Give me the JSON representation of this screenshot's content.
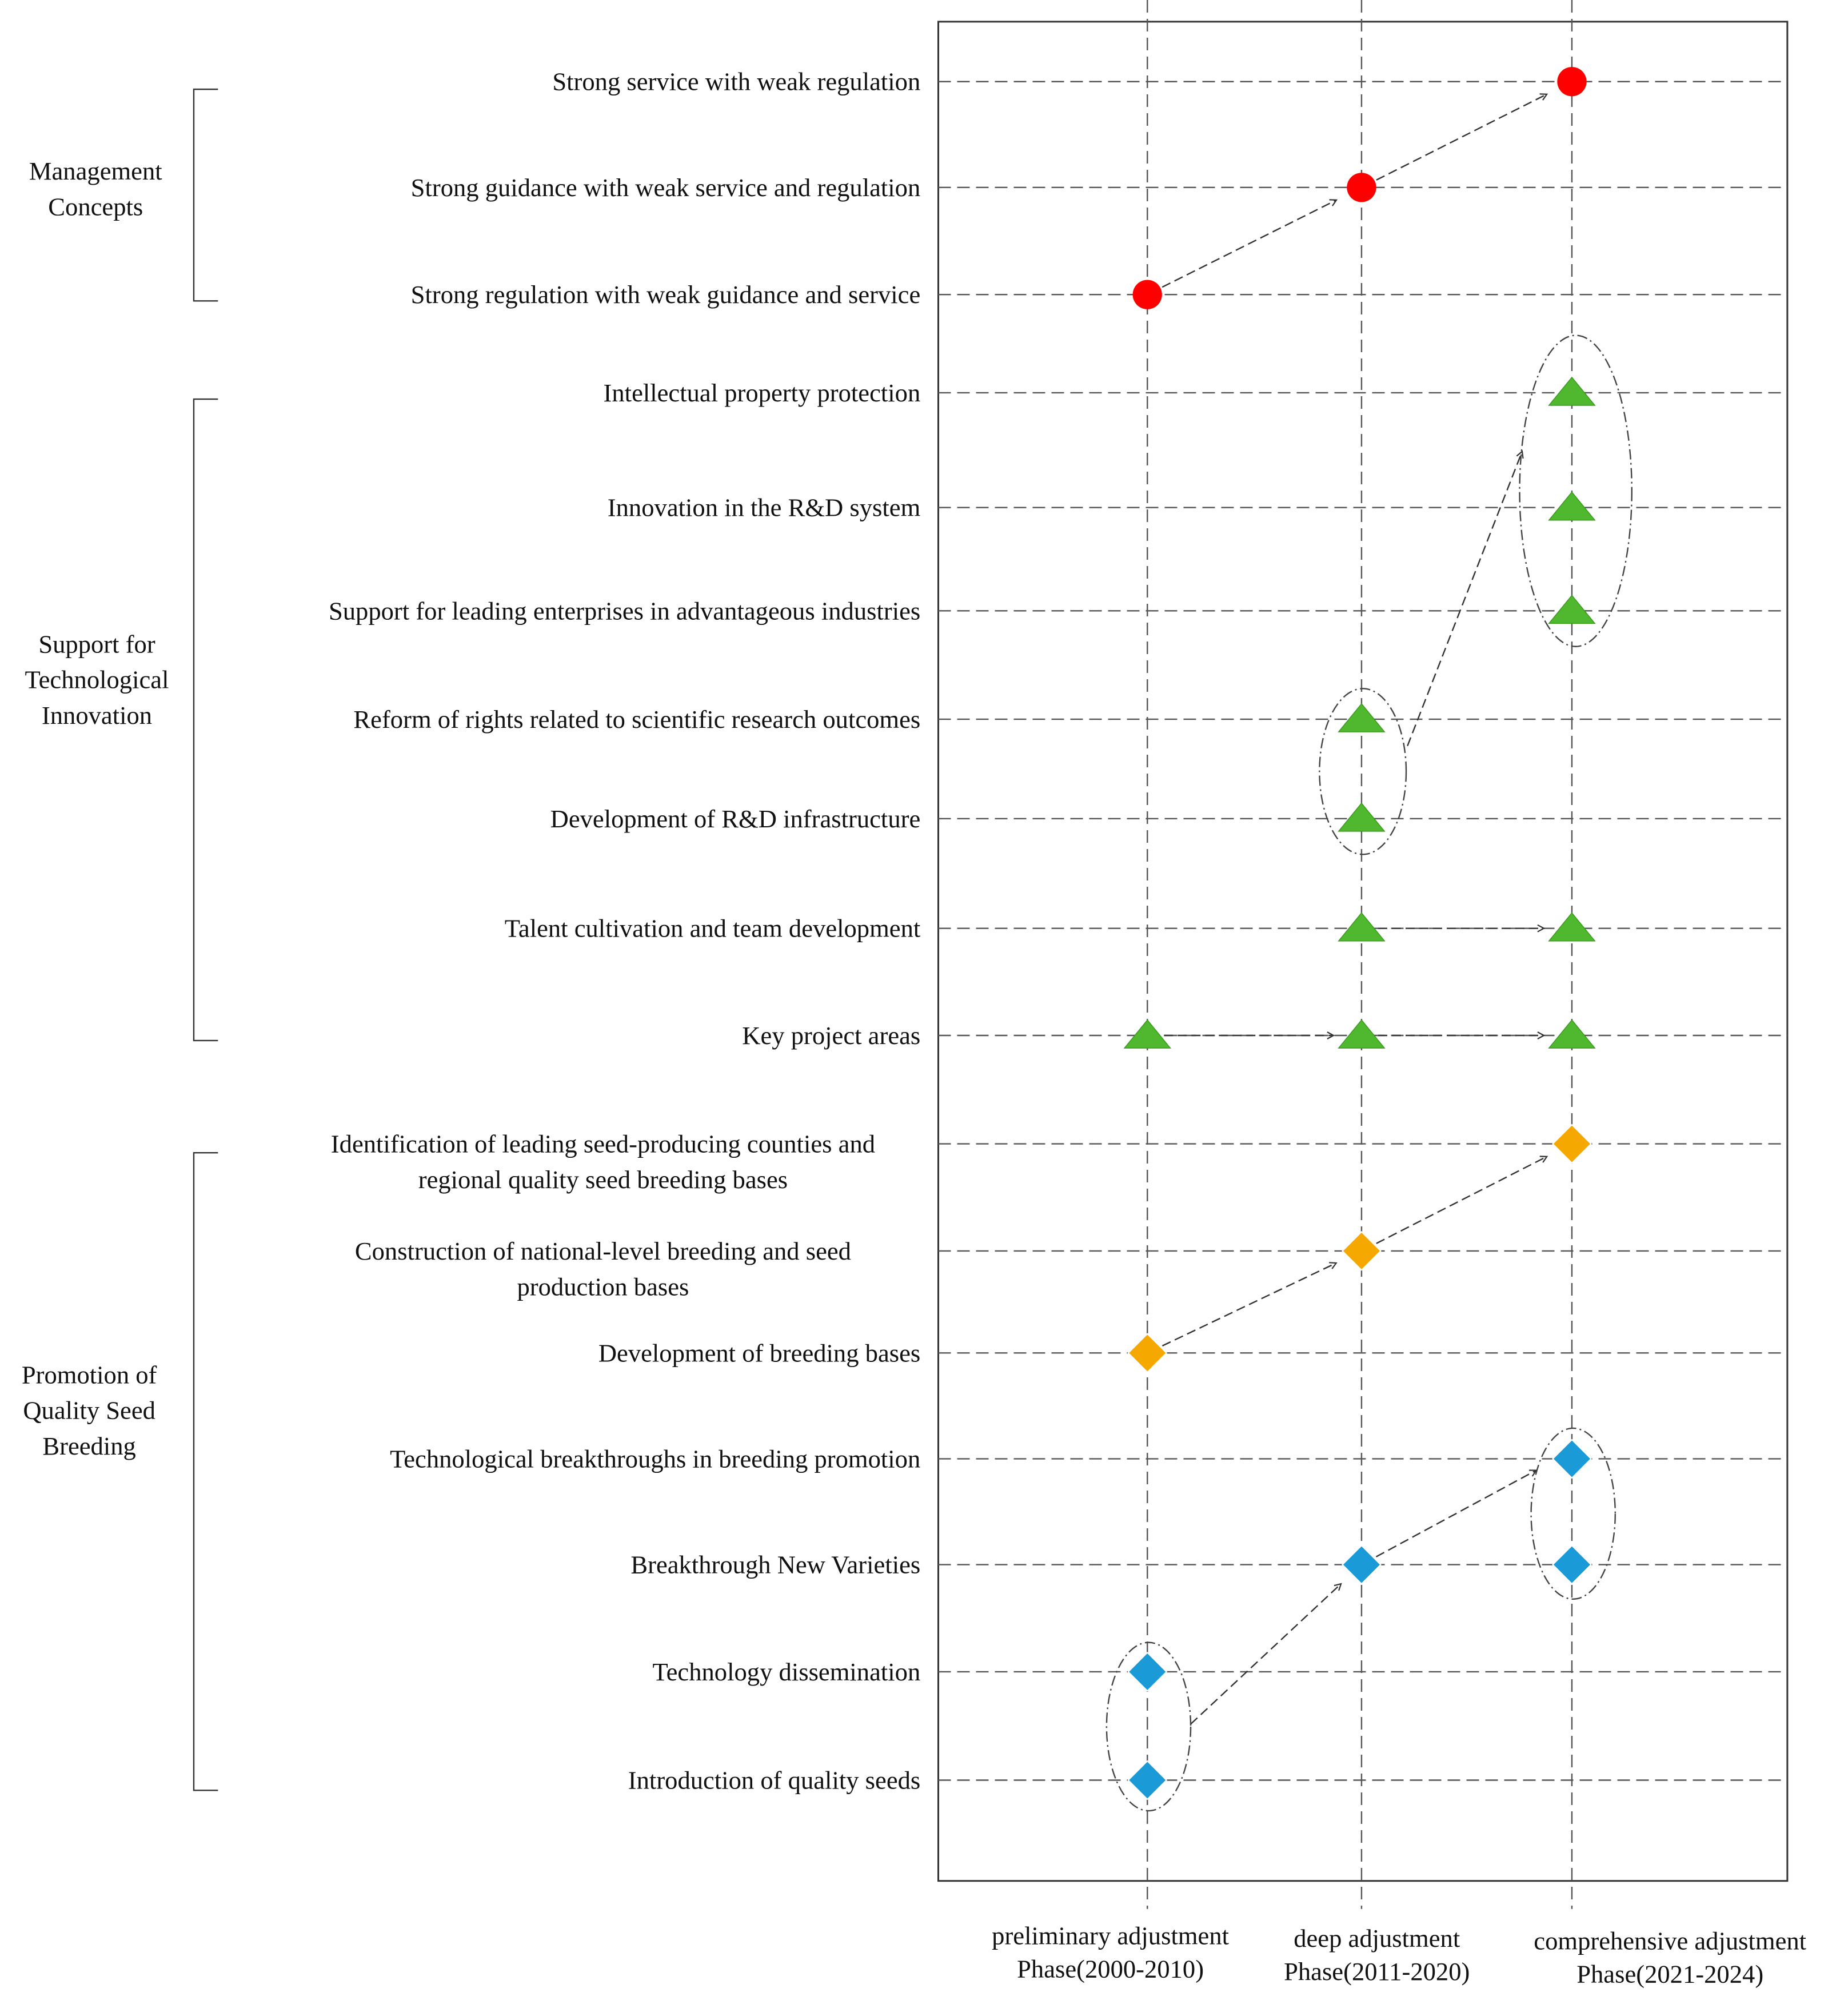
{
  "groups": [
    {
      "id": "management",
      "lines": [
        "Management",
        "Concepts"
      ]
    },
    {
      "id": "innovation",
      "lines": [
        "Support for",
        "Technological",
        "Innovation"
      ]
    },
    {
      "id": "breeding",
      "lines": [
        "Promotion of",
        "Quality Seed",
        "Breeding"
      ]
    }
  ],
  "rows": [
    {
      "id": "r1",
      "lines": [
        "Strong service with weak regulation"
      ]
    },
    {
      "id": "r2",
      "lines": [
        "Strong guidance with weak service and regulation"
      ]
    },
    {
      "id": "r3",
      "lines": [
        "Strong regulation with weak guidance and service"
      ]
    },
    {
      "id": "r4",
      "lines": [
        "Intellectual property protection"
      ]
    },
    {
      "id": "r5",
      "lines": [
        "Innovation in the R&D system"
      ]
    },
    {
      "id": "r6",
      "lines": [
        "Support for leading enterprises in advantageous industries"
      ]
    },
    {
      "id": "r7",
      "lines": [
        "Reform of rights related to scientific research outcomes"
      ]
    },
    {
      "id": "r8",
      "lines": [
        "Development of R&D infrastructure"
      ]
    },
    {
      "id": "r9",
      "lines": [
        "Talent cultivation and team development"
      ]
    },
    {
      "id": "r10",
      "lines": [
        "Key project areas"
      ]
    },
    {
      "id": "r11",
      "lines": [
        "Identification of leading seed-producing counties and",
        "regional quality seed breeding bases"
      ]
    },
    {
      "id": "r12",
      "lines": [
        "Construction of national-level breeding and seed",
        "production bases"
      ]
    },
    {
      "id": "r13",
      "lines": [
        "Development of breeding bases"
      ]
    },
    {
      "id": "r14",
      "lines": [
        "Technological breakthroughs in breeding promotion"
      ]
    },
    {
      "id": "r15",
      "lines": [
        "Breakthrough New Varieties"
      ]
    },
    {
      "id": "r16",
      "lines": [
        "Technology dissemination"
      ]
    },
    {
      "id": "r17",
      "lines": [
        "Introduction of quality seeds"
      ]
    }
  ],
  "phases": [
    {
      "id": "p1",
      "lines": [
        "preliminary adjustment",
        "Phase(2000-2010)"
      ]
    },
    {
      "id": "p2",
      "lines": [
        "deep adjustment",
        "Phase(2011-2020)"
      ]
    },
    {
      "id": "p3",
      "lines": [
        "comprehensive adjustment",
        "Phase(2021-2024)"
      ]
    }
  ],
  "markers": [
    {
      "row": "r1",
      "phase": "p3",
      "shape": "circle",
      "color": "#ff0000"
    },
    {
      "row": "r2",
      "phase": "p2",
      "shape": "circle",
      "color": "#ff0000"
    },
    {
      "row": "r3",
      "phase": "p1",
      "shape": "circle",
      "color": "#ff0000"
    },
    {
      "row": "r4",
      "phase": "p3",
      "shape": "triangle",
      "color": "#4fb82e"
    },
    {
      "row": "r5",
      "phase": "p3",
      "shape": "triangle",
      "color": "#4fb82e"
    },
    {
      "row": "r6",
      "phase": "p3",
      "shape": "triangle",
      "color": "#4fb82e"
    },
    {
      "row": "r7",
      "phase": "p2",
      "shape": "triangle",
      "color": "#4fb82e"
    },
    {
      "row": "r8",
      "phase": "p2",
      "shape": "triangle",
      "color": "#4fb82e"
    },
    {
      "row": "r9",
      "phase": "p2",
      "shape": "triangle",
      "color": "#4fb82e"
    },
    {
      "row": "r9",
      "phase": "p3",
      "shape": "triangle",
      "color": "#4fb82e"
    },
    {
      "row": "r10",
      "phase": "p1",
      "shape": "triangle",
      "color": "#4fb82e"
    },
    {
      "row": "r10",
      "phase": "p2",
      "shape": "triangle",
      "color": "#4fb82e"
    },
    {
      "row": "r10",
      "phase": "p3",
      "shape": "triangle",
      "color": "#4fb82e"
    },
    {
      "row": "r11",
      "phase": "p3",
      "shape": "diamond",
      "color": "#f5a800"
    },
    {
      "row": "r12",
      "phase": "p2",
      "shape": "diamond",
      "color": "#f5a800"
    },
    {
      "row": "r13",
      "phase": "p1",
      "shape": "diamond",
      "color": "#f5a800"
    },
    {
      "row": "r14",
      "phase": "p3",
      "shape": "diamond",
      "color": "#1a9ad6"
    },
    {
      "row": "r15",
      "phase": "p2",
      "shape": "diamond",
      "color": "#1a9ad6"
    },
    {
      "row": "r15",
      "phase": "p3",
      "shape": "diamond",
      "color": "#1a9ad6"
    },
    {
      "row": "r16",
      "phase": "p1",
      "shape": "diamond",
      "color": "#1a9ad6"
    },
    {
      "row": "r17",
      "phase": "p1",
      "shape": "diamond",
      "color": "#1a9ad6"
    }
  ],
  "arrows": [
    {
      "from": "r3@p1",
      "to": "r2@p2"
    },
    {
      "from": "r2@p2",
      "to": "r1@p3"
    },
    {
      "from": "group:r7-r8@p2",
      "to": "group:r4-r6@p3"
    },
    {
      "from": "r9@p2",
      "to": "r9@p3"
    },
    {
      "from": "r10@p1",
      "to": "r10@p2"
    },
    {
      "from": "r10@p2",
      "to": "r10@p3"
    },
    {
      "from": "r13@p1",
      "to": "r12@p2"
    },
    {
      "from": "r12@p2",
      "to": "r11@p3"
    },
    {
      "from": "group:r16-r17@p1",
      "to": "r15@p2"
    },
    {
      "from": "r15@p2",
      "to": "group:r14-r15@p3"
    }
  ],
  "clusters": [
    {
      "phase": "p3",
      "rows": [
        "r4",
        "r5",
        "r6"
      ]
    },
    {
      "phase": "p2",
      "rows": [
        "r7",
        "r8"
      ]
    },
    {
      "phase": "p3",
      "rows": [
        "r14",
        "r15"
      ]
    },
    {
      "phase": "p1",
      "rows": [
        "r16",
        "r17"
      ]
    }
  ]
}
